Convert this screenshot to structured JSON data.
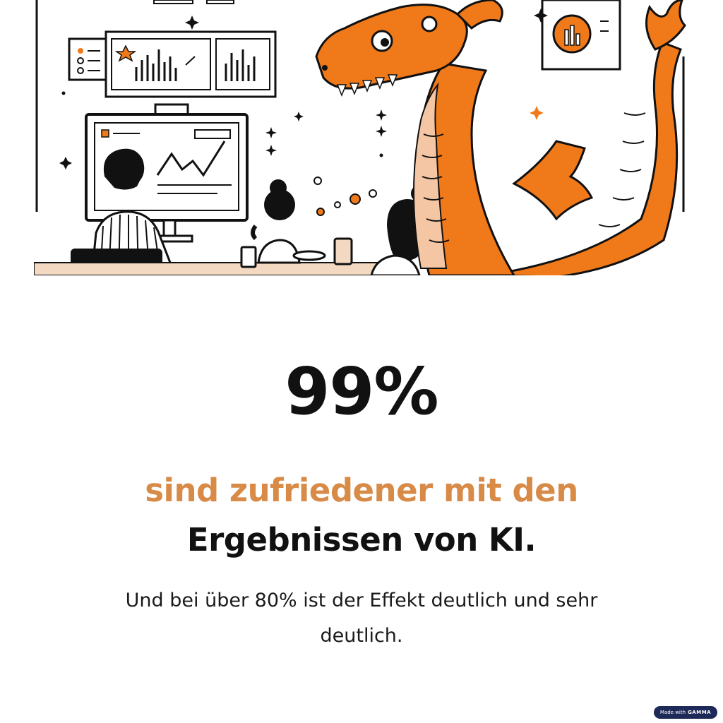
{
  "stat": "99%",
  "headline": {
    "line1": "sind zufriedener mit den",
    "line2": "Ergebnissen von KI."
  },
  "subtext": "Und bei über 80% ist der Effekt deutlich und sehr deutlich.",
  "badge": {
    "prefix": "Made with",
    "brand": "GAMMA"
  },
  "colors": {
    "accent": "#d88a47",
    "dragon": "#f07a1a",
    "text": "#111111",
    "badge": "#1d2a57"
  },
  "illustration": {
    "icons": [
      "dragon-icon",
      "monitor-icon",
      "chart-icon",
      "person-icon",
      "coffee-cup-icon"
    ]
  }
}
